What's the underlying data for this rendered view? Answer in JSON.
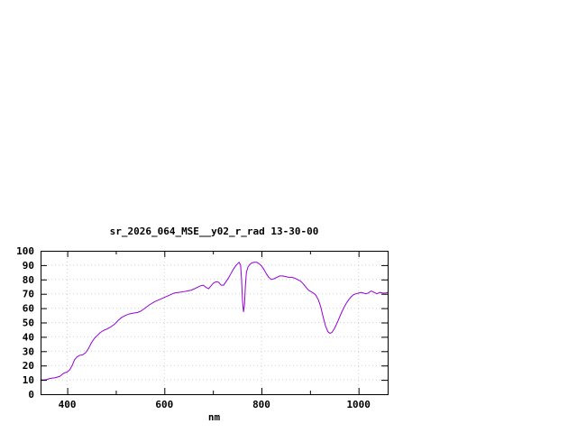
{
  "chart_data": {
    "type": "line",
    "title": "sr_2026_064_MSE__y02_r_rad 13-30-00",
    "xlabel": "nm",
    "ylabel": "",
    "xlim": [
      345,
      1060
    ],
    "ylim": [
      0,
      100
    ],
    "xticks": [
      400,
      600,
      800,
      1000
    ],
    "xtick_labels": [
      "400",
      "600",
      "800",
      "1000"
    ],
    "minor_xticks": [
      500,
      700,
      900
    ],
    "yticks": [
      0,
      10,
      20,
      30,
      40,
      50,
      60,
      70,
      80,
      90,
      100
    ],
    "ytick_labels": [
      "0",
      "10",
      "20",
      "30",
      "40",
      "50",
      "60",
      "70",
      "80",
      "90",
      "100"
    ],
    "grid": true,
    "legend": "none",
    "line_color": "#9400d3",
    "series": [
      {
        "points": [
          [
            345,
            10
          ],
          [
            355,
            10
          ],
          [
            365,
            11
          ],
          [
            375,
            11.5
          ],
          [
            385,
            12.5
          ],
          [
            390,
            14
          ],
          [
            395,
            15
          ],
          [
            400,
            15.5
          ],
          [
            405,
            17
          ],
          [
            410,
            20
          ],
          [
            415,
            24
          ],
          [
            420,
            26
          ],
          [
            425,
            27
          ],
          [
            432,
            27.5
          ],
          [
            438,
            29
          ],
          [
            444,
            32
          ],
          [
            450,
            36
          ],
          [
            456,
            39
          ],
          [
            462,
            41
          ],
          [
            468,
            43
          ],
          [
            475,
            44.5
          ],
          [
            482,
            45.5
          ],
          [
            490,
            47
          ],
          [
            498,
            49
          ],
          [
            505,
            51.5
          ],
          [
            512,
            53.5
          ],
          [
            520,
            55
          ],
          [
            528,
            56
          ],
          [
            536,
            56.5
          ],
          [
            545,
            57
          ],
          [
            552,
            58
          ],
          [
            560,
            60
          ],
          [
            570,
            62.5
          ],
          [
            580,
            64.5
          ],
          [
            590,
            66
          ],
          [
            600,
            67.5
          ],
          [
            610,
            69
          ],
          [
            620,
            70.5
          ],
          [
            630,
            71
          ],
          [
            640,
            71.5
          ],
          [
            648,
            72
          ],
          [
            655,
            72.5
          ],
          [
            662,
            73.5
          ],
          [
            668,
            74.5
          ],
          [
            674,
            75.5
          ],
          [
            680,
            76
          ],
          [
            686,
            74.5
          ],
          [
            691,
            73.5
          ],
          [
            696,
            75.5
          ],
          [
            701,
            77.5
          ],
          [
            707,
            78.5
          ],
          [
            712,
            78
          ],
          [
            717,
            76
          ],
          [
            722,
            76
          ],
          [
            727,
            78.5
          ],
          [
            732,
            81
          ],
          [
            737,
            84
          ],
          [
            742,
            87
          ],
          [
            747,
            89.5
          ],
          [
            751,
            91
          ],
          [
            754,
            92
          ],
          [
            757,
            90
          ],
          [
            759,
            80
          ],
          [
            761,
            65
          ],
          [
            763,
            57.5
          ],
          [
            765,
            62
          ],
          [
            767,
            76
          ],
          [
            769,
            85
          ],
          [
            772,
            88.5
          ],
          [
            776,
            90.5
          ],
          [
            780,
            91.5
          ],
          [
            785,
            92
          ],
          [
            790,
            92
          ],
          [
            795,
            91
          ],
          [
            800,
            89.5
          ],
          [
            805,
            87
          ],
          [
            810,
            84
          ],
          [
            815,
            81.5
          ],
          [
            820,
            80
          ],
          [
            826,
            80.5
          ],
          [
            832,
            81.5
          ],
          [
            838,
            82.5
          ],
          [
            844,
            82.5
          ],
          [
            850,
            82
          ],
          [
            856,
            81.5
          ],
          [
            862,
            81.5
          ],
          [
            868,
            81
          ],
          [
            874,
            80
          ],
          [
            880,
            79
          ],
          [
            886,
            77
          ],
          [
            892,
            74.5
          ],
          [
            897,
            72.5
          ],
          [
            902,
            71.5
          ],
          [
            907,
            70.5
          ],
          [
            912,
            69
          ],
          [
            917,
            66
          ],
          [
            922,
            61
          ],
          [
            927,
            54
          ],
          [
            932,
            47.5
          ],
          [
            937,
            43.5
          ],
          [
            941,
            42.5
          ],
          [
            945,
            43
          ],
          [
            950,
            45.5
          ],
          [
            955,
            49
          ],
          [
            960,
            53
          ],
          [
            965,
            57
          ],
          [
            970,
            60.5
          ],
          [
            975,
            63.5
          ],
          [
            980,
            66
          ],
          [
            985,
            68
          ],
          [
            990,
            69.5
          ],
          [
            995,
            70
          ],
          [
            1000,
            70.5
          ],
          [
            1005,
            71
          ],
          [
            1010,
            70.5
          ],
          [
            1015,
            70
          ],
          [
            1020,
            70.5
          ],
          [
            1026,
            72
          ],
          [
            1032,
            71
          ],
          [
            1038,
            70
          ],
          [
            1044,
            71
          ],
          [
            1050,
            70.5
          ],
          [
            1056,
            70.5
          ],
          [
            1060,
            71
          ]
        ]
      }
    ]
  },
  "colors": {
    "background": "#ffffff",
    "border": "#000000",
    "text": "#000000",
    "grid": "#d0d0d0"
  }
}
